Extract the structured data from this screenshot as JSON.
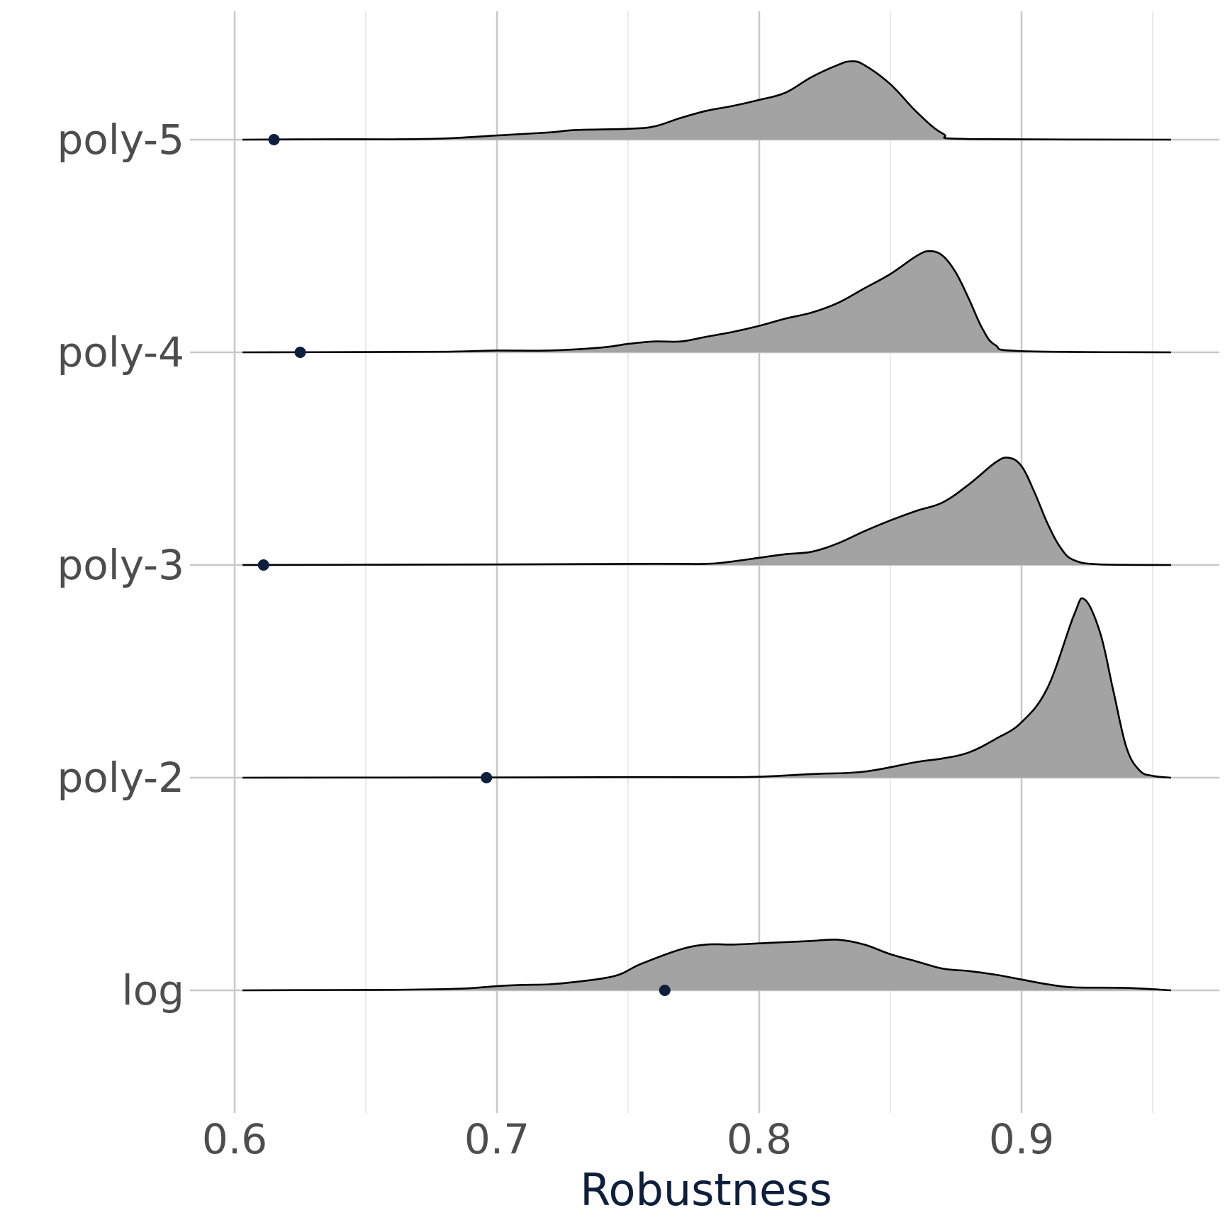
{
  "chart_data": {
    "type": "ridgeline",
    "xlabel": "Robustness",
    "ylabel": "",
    "title": "",
    "xlim": [
      0.6,
      0.96
    ],
    "x_ticks": [
      "0.6",
      "0.7",
      "0.8",
      "0.9"
    ],
    "x_tick_values": [
      0.6,
      0.7,
      0.8,
      0.9
    ],
    "x_minor_grid": [
      0.65,
      0.75,
      0.85,
      0.95
    ],
    "grid": true,
    "fill_color": "#a3a3a3",
    "line_color": "#000000",
    "point_color": "#0d1f3c",
    "axis_title_color": "#0d1f3c",
    "grid_color": "#c8c8c8",
    "categories": [
      "log",
      "poly-2",
      "poly-3",
      "poly-4",
      "poly-5"
    ],
    "series": [
      {
        "name": "log",
        "point": 0.764,
        "density": [
          [
            0.603,
            0
          ],
          [
            0.64,
            0.003
          ],
          [
            0.66,
            0.004
          ],
          [
            0.68,
            0.01
          ],
          [
            0.69,
            0.018
          ],
          [
            0.7,
            0.035
          ],
          [
            0.71,
            0.045
          ],
          [
            0.72,
            0.05
          ],
          [
            0.73,
            0.07
          ],
          [
            0.745,
            0.12
          ],
          [
            0.755,
            0.22
          ],
          [
            0.77,
            0.34
          ],
          [
            0.78,
            0.38
          ],
          [
            0.79,
            0.38
          ],
          [
            0.8,
            0.39
          ],
          [
            0.81,
            0.4
          ],
          [
            0.82,
            0.41
          ],
          [
            0.83,
            0.42
          ],
          [
            0.84,
            0.38
          ],
          [
            0.85,
            0.3
          ],
          [
            0.86,
            0.24
          ],
          [
            0.87,
            0.18
          ],
          [
            0.88,
            0.16
          ],
          [
            0.89,
            0.13
          ],
          [
            0.9,
            0.09
          ],
          [
            0.91,
            0.05
          ],
          [
            0.92,
            0.025
          ],
          [
            0.94,
            0.02
          ],
          [
            0.957,
            0
          ]
        ]
      },
      {
        "name": "poly-2",
        "point": 0.696,
        "density": [
          [
            0.603,
            0
          ],
          [
            0.7,
            0.002
          ],
          [
            0.76,
            0.005
          ],
          [
            0.78,
            0.004
          ],
          [
            0.8,
            0.008
          ],
          [
            0.82,
            0.03
          ],
          [
            0.84,
            0.05
          ],
          [
            0.86,
            0.13
          ],
          [
            0.87,
            0.16
          ],
          [
            0.88,
            0.21
          ],
          [
            0.89,
            0.32
          ],
          [
            0.9,
            0.46
          ],
          [
            0.91,
            0.75
          ],
          [
            0.92,
            1.35
          ],
          [
            0.924,
            1.48
          ],
          [
            0.93,
            1.2
          ],
          [
            0.935,
            0.72
          ],
          [
            0.94,
            0.25
          ],
          [
            0.945,
            0.06
          ],
          [
            0.95,
            0.015
          ],
          [
            0.957,
            0
          ]
        ]
      },
      {
        "name": "poly-3",
        "point": 0.611,
        "density": [
          [
            0.603,
            0
          ],
          [
            0.7,
            0.005
          ],
          [
            0.76,
            0.01
          ],
          [
            0.78,
            0.01
          ],
          [
            0.79,
            0.03
          ],
          [
            0.8,
            0.06
          ],
          [
            0.81,
            0.09
          ],
          [
            0.82,
            0.11
          ],
          [
            0.83,
            0.18
          ],
          [
            0.84,
            0.28
          ],
          [
            0.85,
            0.37
          ],
          [
            0.86,
            0.45
          ],
          [
            0.87,
            0.52
          ],
          [
            0.88,
            0.67
          ],
          [
            0.89,
            0.85
          ],
          [
            0.895,
            0.89
          ],
          [
            0.9,
            0.82
          ],
          [
            0.905,
            0.6
          ],
          [
            0.91,
            0.34
          ],
          [
            0.915,
            0.14
          ],
          [
            0.92,
            0.04
          ],
          [
            0.93,
            0.005
          ],
          [
            0.957,
            0
          ]
        ]
      },
      {
        "name": "poly-4",
        "point": 0.625,
        "density": [
          [
            0.603,
            0
          ],
          [
            0.64,
            0.002
          ],
          [
            0.68,
            0.005
          ],
          [
            0.7,
            0.015
          ],
          [
            0.72,
            0.015
          ],
          [
            0.74,
            0.04
          ],
          [
            0.75,
            0.07
          ],
          [
            0.76,
            0.09
          ],
          [
            0.77,
            0.09
          ],
          [
            0.78,
            0.13
          ],
          [
            0.79,
            0.17
          ],
          [
            0.8,
            0.22
          ],
          [
            0.81,
            0.28
          ],
          [
            0.82,
            0.33
          ],
          [
            0.83,
            0.41
          ],
          [
            0.84,
            0.53
          ],
          [
            0.85,
            0.65
          ],
          [
            0.86,
            0.8
          ],
          [
            0.865,
            0.84
          ],
          [
            0.87,
            0.8
          ],
          [
            0.875,
            0.66
          ],
          [
            0.88,
            0.44
          ],
          [
            0.885,
            0.2
          ],
          [
            0.89,
            0.06
          ],
          [
            0.9,
            0.01
          ],
          [
            0.957,
            0
          ]
        ]
      },
      {
        "name": "poly-5",
        "point": 0.615,
        "density": [
          [
            0.603,
            0
          ],
          [
            0.63,
            0.003
          ],
          [
            0.66,
            0.003
          ],
          [
            0.68,
            0.01
          ],
          [
            0.7,
            0.035
          ],
          [
            0.72,
            0.06
          ],
          [
            0.73,
            0.08
          ],
          [
            0.75,
            0.09
          ],
          [
            0.76,
            0.11
          ],
          [
            0.77,
            0.18
          ],
          [
            0.78,
            0.24
          ],
          [
            0.79,
            0.28
          ],
          [
            0.8,
            0.33
          ],
          [
            0.81,
            0.39
          ],
          [
            0.82,
            0.52
          ],
          [
            0.83,
            0.62
          ],
          [
            0.835,
            0.65
          ],
          [
            0.84,
            0.62
          ],
          [
            0.85,
            0.46
          ],
          [
            0.86,
            0.23
          ],
          [
            0.87,
            0.05
          ],
          [
            0.88,
            0.005
          ],
          [
            0.957,
            0
          ]
        ]
      }
    ]
  }
}
